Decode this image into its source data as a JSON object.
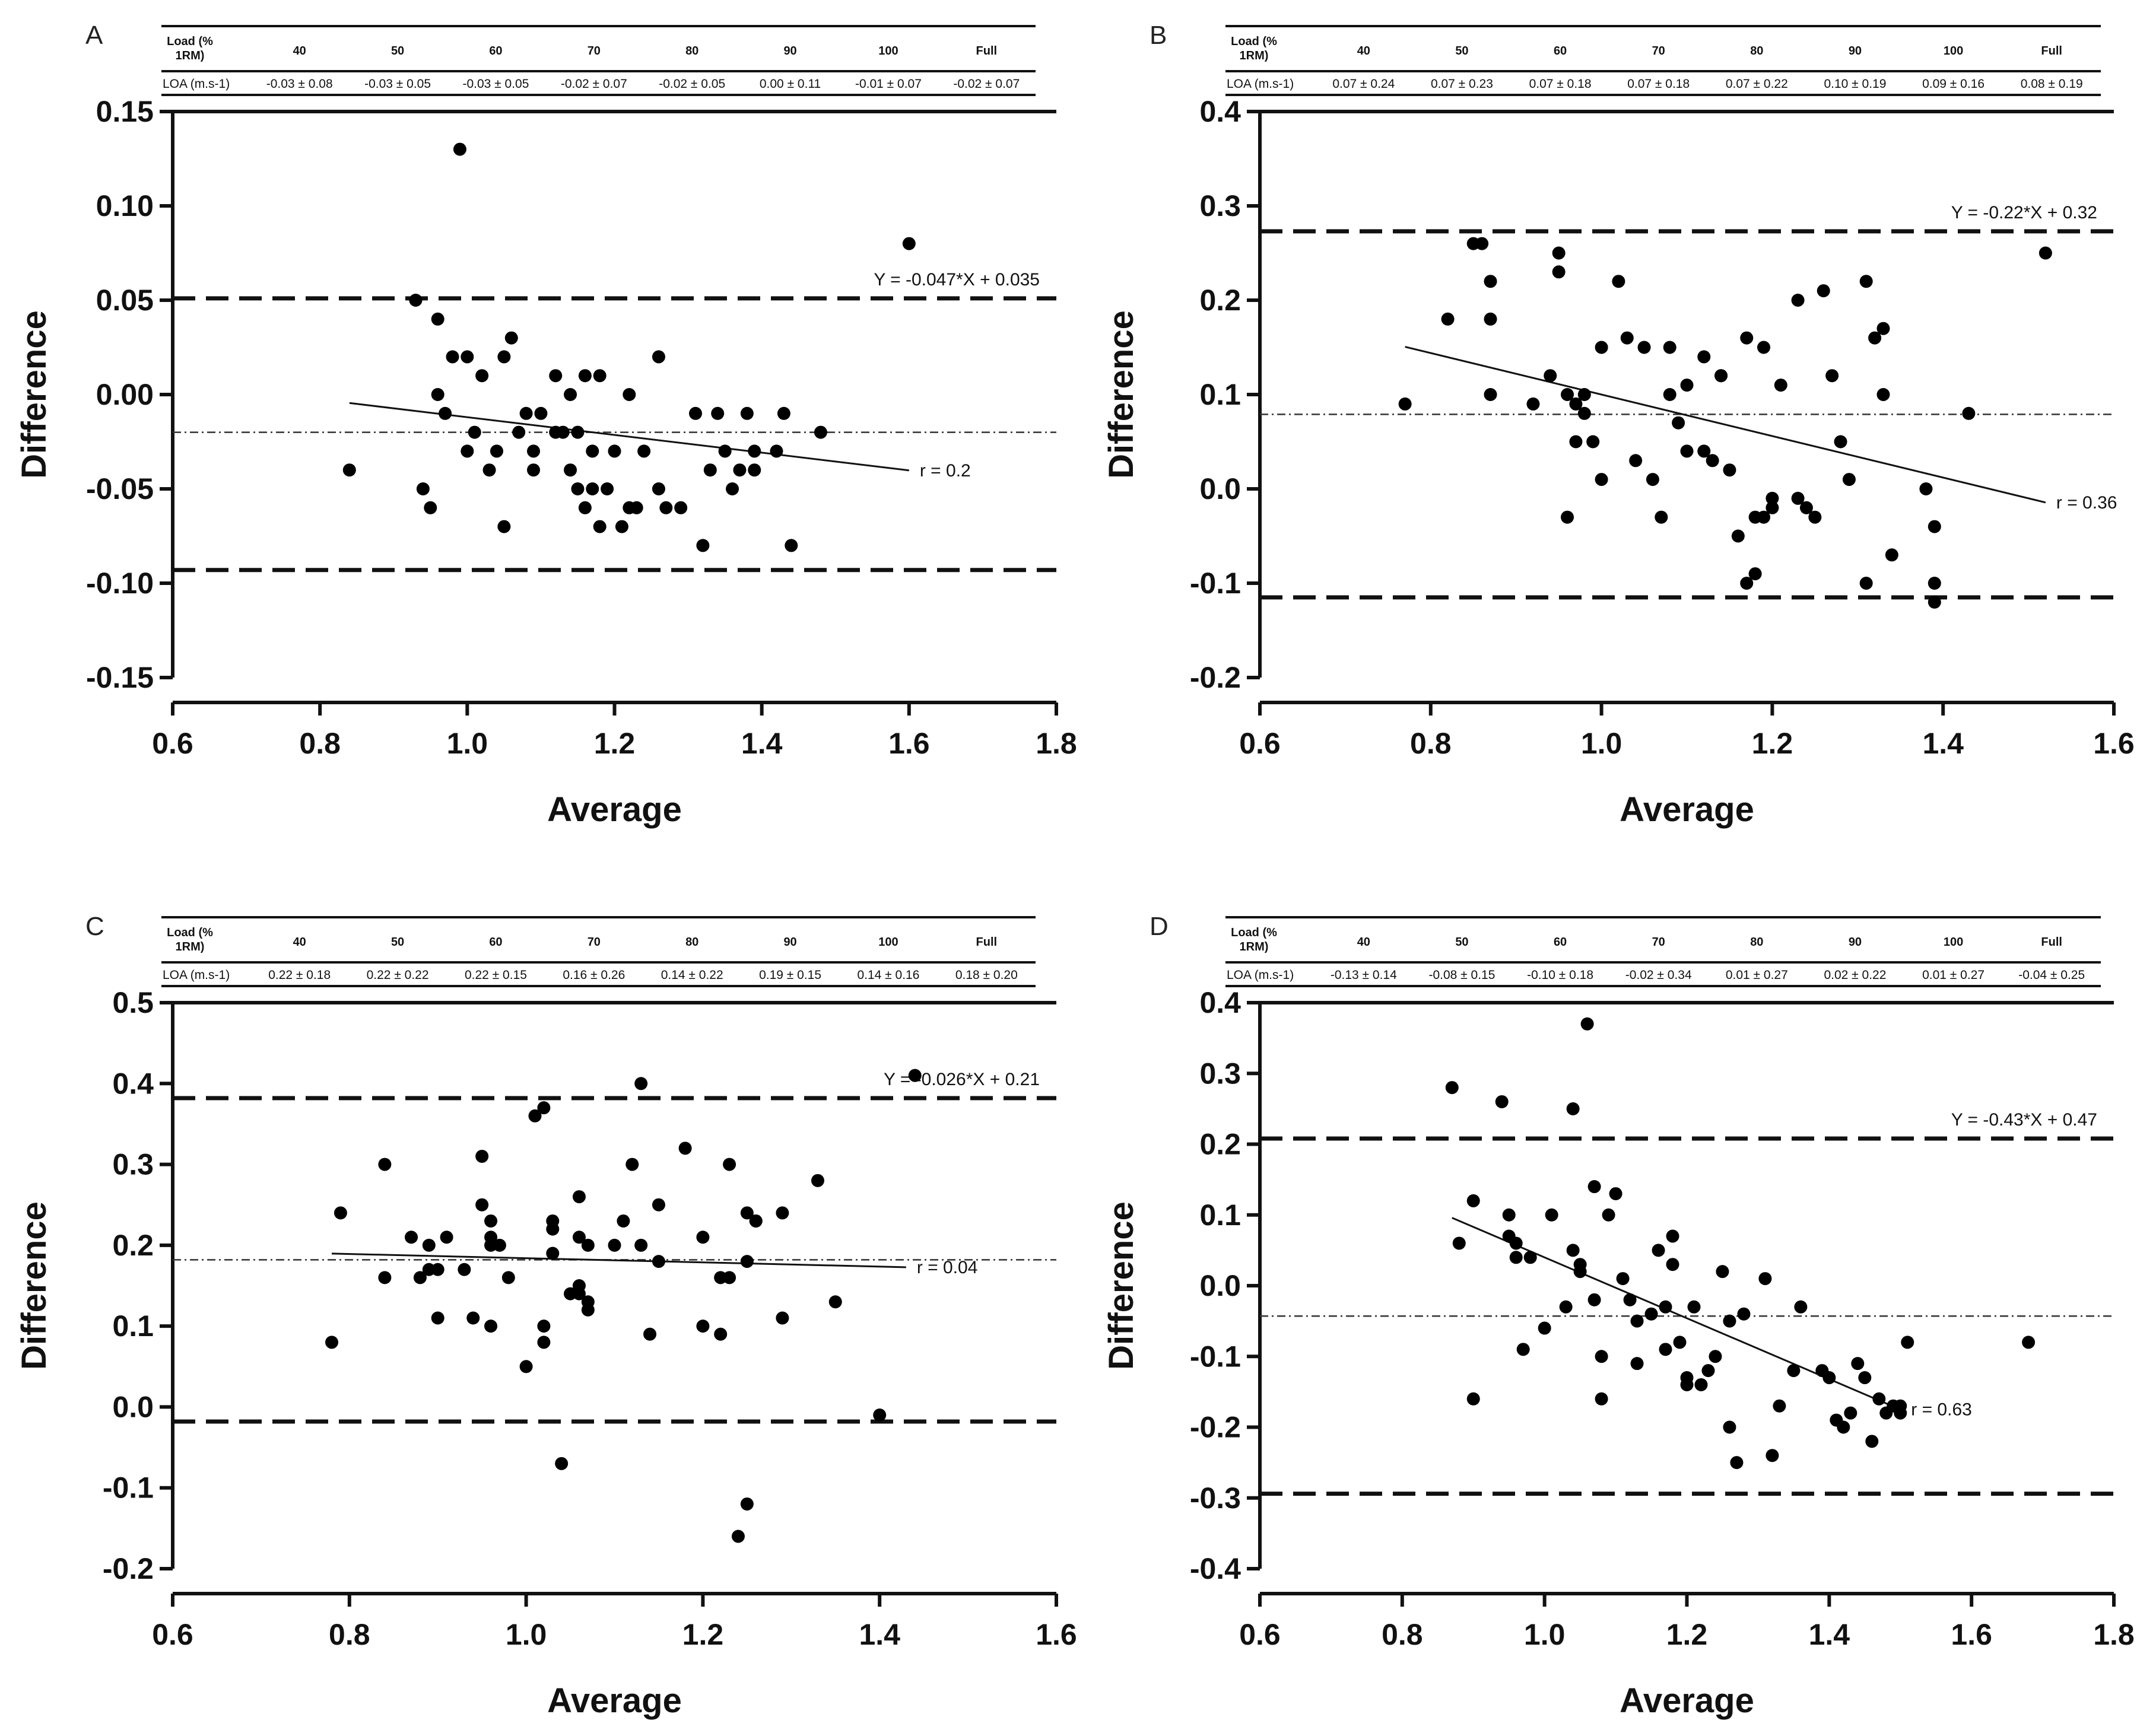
{
  "chart_data": [
    {
      "type": "scatter",
      "panel": "A",
      "title": "",
      "xlabel": "Average",
      "ylabel": "Difference",
      "xlim": [
        0.6,
        1.8
      ],
      "ylim": [
        -0.15,
        0.15
      ],
      "xticks": [
        "0.6",
        "0.8",
        "1.0",
        "1.2",
        "1.4",
        "1.6",
        "1.8"
      ],
      "yticks": [
        "-0.15",
        "-0.10",
        "-0.05",
        "0.00",
        "0.05",
        "0.10",
        "0.15"
      ],
      "grid": false,
      "table": {
        "header_label": "Load (% 1RM)",
        "row_label": "LOA (m.s-1)",
        "loads": [
          "40",
          "50",
          "60",
          "70",
          "80",
          "90",
          "100",
          "Full"
        ],
        "loa": [
          "-0.03 ± 0.08",
          "-0.03 ± 0.05",
          "-0.03 ± 0.05",
          "-0.02 ± 0.07",
          "-0.02 ± 0.05",
          "0.00 ± 0.11",
          "-0.01 ± 0.07",
          "-0.02 ± 0.07"
        ]
      },
      "bias": -0.02,
      "upper_loa": 0.051,
      "lower_loa": -0.093,
      "regression": {
        "slope": -0.047,
        "intercept": 0.035,
        "x_start": 0.84,
        "x_end": 1.6
      },
      "equation_label": "Y = -0.047*X + 0.035",
      "r_label": "r = 0.2",
      "points": {
        "x": [
          0.84,
          0.93,
          0.94,
          0.95,
          0.96,
          0.96,
          0.97,
          0.98,
          0.99,
          1.0,
          1.0,
          1.01,
          1.02,
          1.03,
          1.04,
          1.05,
          1.05,
          1.06,
          1.07,
          1.08,
          1.09,
          1.09,
          1.1,
          1.12,
          1.12,
          1.13,
          1.14,
          1.14,
          1.15,
          1.15,
          1.16,
          1.16,
          1.17,
          1.17,
          1.18,
          1.18,
          1.19,
          1.2,
          1.21,
          1.22,
          1.22,
          1.23,
          1.24,
          1.26,
          1.26,
          1.27,
          1.29,
          1.31,
          1.32,
          1.33,
          1.34,
          1.35,
          1.36,
          1.37,
          1.38,
          1.39,
          1.39,
          1.42,
          1.43,
          1.44,
          1.48,
          1.6
        ],
        "y": [
          -0.04,
          0.05,
          -0.05,
          -0.06,
          0.04,
          0.0,
          -0.01,
          0.02,
          0.13,
          0.02,
          -0.03,
          -0.02,
          0.01,
          -0.04,
          -0.03,
          0.02,
          -0.07,
          0.03,
          -0.02,
          -0.01,
          -0.03,
          -0.04,
          -0.01,
          0.01,
          -0.02,
          -0.02,
          -0.04,
          0.0,
          -0.02,
          -0.05,
          -0.06,
          0.01,
          -0.03,
          -0.05,
          0.01,
          -0.07,
          -0.05,
          -0.03,
          -0.07,
          -0.06,
          0.0,
          -0.06,
          -0.03,
          0.02,
          -0.05,
          -0.06,
          -0.06,
          -0.01,
          -0.08,
          -0.04,
          -0.01,
          -0.03,
          -0.05,
          -0.04,
          -0.01,
          -0.03,
          -0.04,
          -0.03,
          -0.01,
          -0.08,
          -0.02,
          0.08
        ]
      }
    },
    {
      "type": "scatter",
      "panel": "B",
      "title": "",
      "xlabel": "Average",
      "ylabel": "Difference",
      "xlim": [
        0.6,
        1.6
      ],
      "ylim": [
        -0.2,
        0.4
      ],
      "xticks": [
        "0.6",
        "0.8",
        "1.0",
        "1.2",
        "1.4",
        "1.6"
      ],
      "yticks": [
        "-0.2",
        "-0.1",
        "0.0",
        "0.1",
        "0.2",
        "0.3",
        "0.4"
      ],
      "grid": false,
      "table": {
        "header_label": "Load (% 1RM)",
        "row_label": "LOA (m.s-1)",
        "loads": [
          "40",
          "50",
          "60",
          "70",
          "80",
          "90",
          "100",
          "Full"
        ],
        "loa": [
          "0.07 ± 0.24",
          "0.07 ± 0.23",
          "0.07 ± 0.18",
          "0.07 ± 0.18",
          "0.07 ± 0.22",
          "0.10 ± 0.19",
          "0.09 ± 0.16",
          "0.08 ± 0.19"
        ]
      },
      "bias": 0.079,
      "upper_loa": 0.273,
      "lower_loa": -0.115,
      "regression": {
        "slope": -0.22,
        "intercept": 0.32,
        "x_start": 0.77,
        "x_end": 1.52
      },
      "equation_label": "Y = -0.22*X + 0.32",
      "r_label": "r = 0.36",
      "points": {
        "x": [
          0.77,
          0.82,
          0.85,
          0.86,
          0.87,
          0.87,
          0.87,
          0.92,
          0.94,
          0.95,
          0.95,
          0.96,
          0.96,
          0.97,
          0.97,
          0.98,
          0.98,
          0.99,
          1.0,
          1.0,
          1.02,
          1.03,
          1.04,
          1.05,
          1.06,
          1.07,
          1.08,
          1.08,
          1.09,
          1.1,
          1.1,
          1.12,
          1.12,
          1.13,
          1.14,
          1.14,
          1.15,
          1.16,
          1.17,
          1.17,
          1.18,
          1.18,
          1.19,
          1.19,
          1.2,
          1.2,
          1.21,
          1.23,
          1.23,
          1.24,
          1.25,
          1.26,
          1.27,
          1.28,
          1.29,
          1.31,
          1.31,
          1.32,
          1.33,
          1.33,
          1.34,
          1.38,
          1.39,
          1.39,
          1.39,
          1.43,
          1.52
        ],
        "y": [
          0.09,
          0.18,
          0.26,
          0.26,
          0.22,
          0.18,
          0.1,
          0.09,
          0.12,
          0.25,
          0.23,
          0.1,
          -0.03,
          0.05,
          0.09,
          0.08,
          0.1,
          0.05,
          0.01,
          0.15,
          0.22,
          0.16,
          0.03,
          0.15,
          0.01,
          -0.03,
          0.1,
          0.15,
          0.07,
          0.11,
          0.04,
          0.14,
          0.04,
          0.03,
          0.12,
          0.12,
          0.02,
          -0.05,
          -0.1,
          0.16,
          -0.03,
          -0.09,
          -0.03,
          0.15,
          -0.02,
          -0.01,
          0.11,
          -0.01,
          0.2,
          -0.02,
          -0.03,
          0.21,
          0.12,
          0.05,
          0.01,
          0.22,
          -0.1,
          0.16,
          0.17,
          0.1,
          -0.07,
          0.0,
          -0.04,
          -0.1,
          -0.12,
          0.08,
          0.25
        ]
      }
    },
    {
      "type": "scatter",
      "panel": "C",
      "title": "",
      "xlabel": "Average",
      "ylabel": "Difference",
      "xlim": [
        0.6,
        1.6
      ],
      "ylim": [
        -0.2,
        0.5
      ],
      "xticks": [
        "0.6",
        "0.8",
        "1.0",
        "1.2",
        "1.4",
        "1.6"
      ],
      "yticks": [
        "-0.2",
        "-0.1",
        "0.0",
        "0.1",
        "0.2",
        "0.3",
        "0.4",
        "0.5"
      ],
      "grid": false,
      "table": {
        "header_label": "Load (% 1RM)",
        "row_label": "LOA (m.s-1)",
        "loads": [
          "40",
          "50",
          "60",
          "70",
          "80",
          "90",
          "100",
          "Full"
        ],
        "loa": [
          "0.22 ± 0.18",
          "0.22 ± 0.22",
          "0.22 ± 0.15",
          "0.16 ± 0.26",
          "0.14 ± 0.22",
          "0.19 ± 0.15",
          "0.14 ± 0.16",
          "0.18 ± 0.20"
        ]
      },
      "bias": 0.182,
      "upper_loa": 0.382,
      "lower_loa": -0.018,
      "regression": {
        "slope": -0.026,
        "intercept": 0.21,
        "x_start": 0.78,
        "x_end": 1.43
      },
      "equation_label": "Y = -0.026*X + 0.21",
      "r_label": "r = 0.04",
      "points": {
        "x": [
          0.78,
          0.79,
          0.84,
          0.84,
          0.87,
          0.88,
          0.89,
          0.89,
          0.9,
          0.9,
          0.91,
          0.93,
          0.94,
          0.95,
          0.95,
          0.96,
          0.96,
          0.96,
          0.96,
          0.97,
          0.98,
          1.0,
          1.01,
          1.02,
          1.02,
          1.02,
          1.03,
          1.03,
          1.03,
          1.04,
          1.05,
          1.06,
          1.06,
          1.06,
          1.06,
          1.07,
          1.07,
          1.07,
          1.1,
          1.11,
          1.12,
          1.13,
          1.13,
          1.14,
          1.15,
          1.15,
          1.18,
          1.2,
          1.2,
          1.22,
          1.22,
          1.23,
          1.23,
          1.24,
          1.25,
          1.25,
          1.25,
          1.26,
          1.26,
          1.29,
          1.29,
          1.33,
          1.35,
          1.4,
          1.44
        ],
        "y": [
          0.08,
          0.24,
          0.3,
          0.16,
          0.21,
          0.16,
          0.2,
          0.17,
          0.17,
          0.11,
          0.21,
          0.17,
          0.11,
          0.31,
          0.25,
          0.23,
          0.21,
          0.2,
          0.1,
          0.2,
          0.16,
          0.05,
          0.36,
          0.37,
          0.1,
          0.08,
          0.22,
          0.23,
          0.19,
          -0.07,
          0.14,
          0.21,
          0.15,
          0.14,
          0.26,
          0.2,
          0.13,
          0.12,
          0.2,
          0.23,
          0.3,
          0.2,
          0.4,
          0.09,
          0.18,
          0.25,
          0.32,
          0.21,
          0.1,
          0.16,
          0.09,
          0.16,
          0.3,
          -0.16,
          0.24,
          -0.12,
          0.18,
          0.23,
          0.23,
          0.11,
          0.24,
          0.28,
          0.13,
          -0.01,
          0.41
        ]
      }
    },
    {
      "type": "scatter",
      "panel": "D",
      "title": "",
      "xlabel": "Average",
      "ylabel": "Difference",
      "xlim": [
        0.6,
        1.8
      ],
      "ylim": [
        -0.4,
        0.4
      ],
      "xticks": [
        "0.6",
        "0.8",
        "1.0",
        "1.2",
        "1.4",
        "1.6",
        "1.8"
      ],
      "yticks": [
        "-0.4",
        "-0.3",
        "-0.2",
        "-0.1",
        "0.0",
        "0.1",
        "0.2",
        "0.3",
        "0.4"
      ],
      "grid": false,
      "table": {
        "header_label": "Load (% 1RM)",
        "row_label": "LOA (m.s-1)",
        "loads": [
          "40",
          "50",
          "60",
          "70",
          "80",
          "90",
          "100",
          "Full"
        ],
        "loa": [
          "-0.13 ± 0.14",
          "-0.08 ± 0.15",
          "-0.10 ± 0.18",
          "-0.02 ± 0.34",
          "0.01 ± 0.27",
          "0.02 ± 0.22",
          "0.01 ± 0.27",
          "-0.04 ± 0.25"
        ]
      },
      "bias": -0.043,
      "upper_loa": 0.208,
      "lower_loa": -0.294,
      "regression": {
        "slope": -0.43,
        "intercept": 0.47,
        "x_start": 0.87,
        "x_end": 1.5
      },
      "equation_label": "Y = -0.43*X + 0.47",
      "r_label": "r = 0.63",
      "points": {
        "x": [
          0.87,
          0.88,
          0.9,
          0.9,
          0.94,
          0.95,
          0.95,
          0.96,
          0.96,
          0.97,
          0.98,
          1.0,
          1.01,
          1.03,
          1.04,
          1.04,
          1.05,
          1.05,
          1.06,
          1.07,
          1.07,
          1.08,
          1.08,
          1.09,
          1.1,
          1.11,
          1.12,
          1.13,
          1.13,
          1.15,
          1.16,
          1.17,
          1.17,
          1.18,
          1.18,
          1.19,
          1.2,
          1.2,
          1.21,
          1.22,
          1.23,
          1.24,
          1.25,
          1.26,
          1.26,
          1.27,
          1.28,
          1.31,
          1.32,
          1.33,
          1.35,
          1.36,
          1.39,
          1.4,
          1.41,
          1.42,
          1.43,
          1.44,
          1.45,
          1.46,
          1.47,
          1.48,
          1.49,
          1.5,
          1.5,
          1.51,
          1.68
        ],
        "y": [
          0.28,
          0.06,
          0.12,
          -0.16,
          0.26,
          0.07,
          0.1,
          0.04,
          0.06,
          -0.09,
          0.04,
          -0.06,
          0.1,
          -0.03,
          0.25,
          0.05,
          0.02,
          0.03,
          0.37,
          -0.02,
          0.14,
          -0.1,
          -0.16,
          0.1,
          0.13,
          0.01,
          -0.02,
          -0.11,
          -0.05,
          -0.04,
          0.05,
          -0.03,
          -0.09,
          0.03,
          0.07,
          -0.08,
          -0.14,
          -0.13,
          -0.03,
          -0.14,
          -0.12,
          -0.1,
          0.02,
          -0.2,
          -0.05,
          -0.25,
          -0.04,
          0.01,
          -0.24,
          -0.17,
          -0.12,
          -0.03,
          -0.12,
          -0.13,
          -0.19,
          -0.2,
          -0.18,
          -0.11,
          -0.13,
          -0.22,
          -0.16,
          -0.18,
          -0.17,
          -0.18,
          -0.17,
          -0.08,
          -0.08
        ]
      }
    }
  ]
}
